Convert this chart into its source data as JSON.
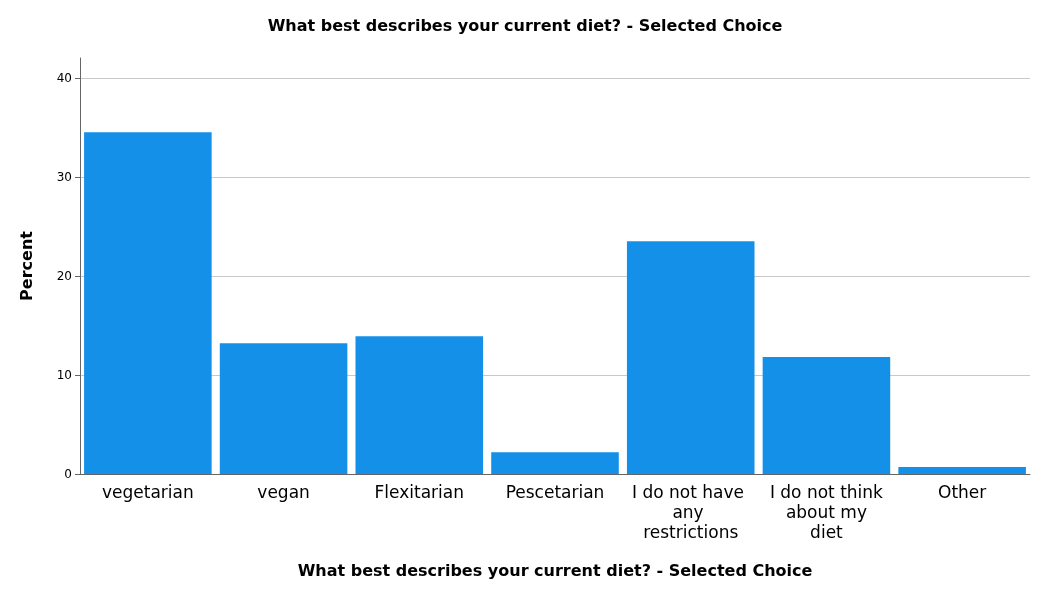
{
  "chart_data": {
    "type": "bar",
    "title": "What best describes your current diet? - Selected Choice",
    "xlabel": "What best describes your current diet? - Selected Choice",
    "ylabel": "Percent",
    "categories": [
      "vegetarian",
      "vegan",
      "Flexitarian",
      "Pescetarian",
      "I do not have any restrictions",
      "I do not think about my diet",
      "Other"
    ],
    "values": [
      34.5,
      13.2,
      13.9,
      2.2,
      23.5,
      11.8,
      0.7
    ],
    "color": "#1490e8",
    "ylim": [
      0,
      42
    ],
    "yticks": [
      0,
      10,
      20,
      30,
      40
    ],
    "grid": "y"
  }
}
